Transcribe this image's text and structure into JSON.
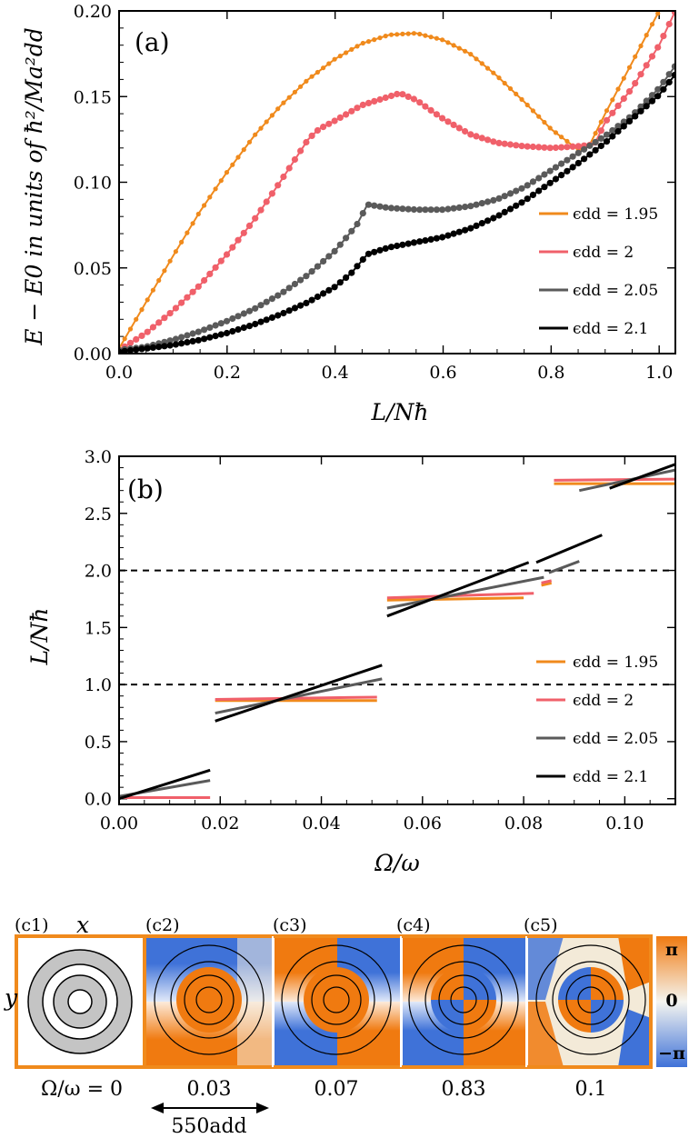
{
  "colors": {
    "eps_1_95": "#f08a1c",
    "eps_2": "#f0606a",
    "eps_2_05": "#5a5a5a",
    "eps_2_1": "#000000",
    "phase_pos": "#f07a10",
    "phase_neg": "#3f72d8",
    "frame": "#f08a1c"
  },
  "chart_data": [
    {
      "type": "line",
      "panel": "(a)",
      "xlabel": "L/Nħ",
      "ylabel": "E − E0 in units of ħ²/Ma²dd",
      "xlim": [
        0,
        1.03
      ],
      "ylim": [
        0,
        0.2
      ],
      "xticks": [
        "0.0",
        "0.2",
        "0.4",
        "0.6",
        "0.8",
        "1.0"
      ],
      "yticks": [
        "0.00",
        "0.05",
        "0.10",
        "0.15",
        "0.20"
      ],
      "legend_position": "right",
      "series": [
        {
          "name": "ϵdd = 1.95",
          "color_key": "eps_1_95",
          "points": [
            [
              0,
              0.003
            ],
            [
              0.05,
              0.03
            ],
            [
              0.1,
              0.057
            ],
            [
              0.15,
              0.083
            ],
            [
              0.2,
              0.106
            ],
            [
              0.25,
              0.127
            ],
            [
              0.3,
              0.145
            ],
            [
              0.35,
              0.16
            ],
            [
              0.4,
              0.172
            ],
            [
              0.45,
              0.181
            ],
            [
              0.5,
              0.186
            ],
            [
              0.55,
              0.187
            ],
            [
              0.6,
              0.183
            ],
            [
              0.65,
              0.175
            ],
            [
              0.7,
              0.162
            ],
            [
              0.75,
              0.147
            ],
            [
              0.8,
              0.131
            ],
            [
              0.85,
              0.119
            ],
            [
              0.87,
              0.121
            ],
            [
              0.9,
              0.14
            ],
            [
              0.95,
              0.17
            ],
            [
              1.0,
              0.2
            ],
            [
              1.03,
              0.22
            ]
          ]
        },
        {
          "name": "ϵdd = 2",
          "color_key": "eps_2",
          "points": [
            [
              0,
              0.002
            ],
            [
              0.05,
              0.012
            ],
            [
              0.1,
              0.025
            ],
            [
              0.15,
              0.04
            ],
            [
              0.2,
              0.058
            ],
            [
              0.25,
              0.078
            ],
            [
              0.3,
              0.101
            ],
            [
              0.35,
              0.125
            ],
            [
              0.37,
              0.131
            ],
            [
              0.4,
              0.136
            ],
            [
              0.45,
              0.145
            ],
            [
              0.5,
              0.15
            ],
            [
              0.52,
              0.152
            ],
            [
              0.55,
              0.148
            ],
            [
              0.6,
              0.137
            ],
            [
              0.65,
              0.128
            ],
            [
              0.7,
              0.123
            ],
            [
              0.75,
              0.121
            ],
            [
              0.8,
              0.12
            ],
            [
              0.85,
              0.121
            ],
            [
              0.88,
              0.122
            ],
            [
              0.9,
              0.135
            ],
            [
              0.95,
              0.155
            ],
            [
              1.0,
              0.18
            ],
            [
              1.03,
              0.2
            ]
          ]
        },
        {
          "name": "ϵdd = 2.05",
          "color_key": "eps_2_05",
          "points": [
            [
              0,
              0.002
            ],
            [
              0.05,
              0.004
            ],
            [
              0.1,
              0.008
            ],
            [
              0.15,
              0.013
            ],
            [
              0.2,
              0.019
            ],
            [
              0.25,
              0.026
            ],
            [
              0.3,
              0.035
            ],
            [
              0.35,
              0.046
            ],
            [
              0.4,
              0.06
            ],
            [
              0.44,
              0.075
            ],
            [
              0.46,
              0.087
            ],
            [
              0.5,
              0.085
            ],
            [
              0.55,
              0.084
            ],
            [
              0.6,
              0.084
            ],
            [
              0.65,
              0.086
            ],
            [
              0.7,
              0.09
            ],
            [
              0.75,
              0.097
            ],
            [
              0.8,
              0.107
            ],
            [
              0.85,
              0.117
            ],
            [
              0.9,
              0.127
            ],
            [
              0.95,
              0.139
            ],
            [
              1.0,
              0.155
            ],
            [
              1.03,
              0.168
            ]
          ]
        },
        {
          "name": "ϵdd = 2.1",
          "color_key": "eps_2_1",
          "points": [
            [
              0,
              0.001
            ],
            [
              0.05,
              0.003
            ],
            [
              0.1,
              0.005
            ],
            [
              0.15,
              0.008
            ],
            [
              0.2,
              0.012
            ],
            [
              0.25,
              0.017
            ],
            [
              0.3,
              0.023
            ],
            [
              0.35,
              0.03
            ],
            [
              0.4,
              0.039
            ],
            [
              0.43,
              0.047
            ],
            [
              0.46,
              0.058
            ],
            [
              0.5,
              0.062
            ],
            [
              0.55,
              0.065
            ],
            [
              0.6,
              0.068
            ],
            [
              0.65,
              0.073
            ],
            [
              0.7,
              0.08
            ],
            [
              0.75,
              0.089
            ],
            [
              0.8,
              0.1
            ],
            [
              0.85,
              0.111
            ],
            [
              0.9,
              0.123
            ],
            [
              0.95,
              0.137
            ],
            [
              1.0,
              0.151
            ],
            [
              1.03,
              0.163
            ]
          ]
        }
      ]
    },
    {
      "type": "line",
      "panel": "(b)",
      "xlabel": "Ω/ω",
      "ylabel": "L/Nħ",
      "xlim": [
        0,
        0.11
      ],
      "ylim": [
        -0.05,
        3
      ],
      "xticks": [
        "0.00",
        "0.02",
        "0.04",
        "0.06",
        "0.08",
        "0.10"
      ],
      "yticks": [
        "0.0",
        "0.5",
        "1.0",
        "1.5",
        "2.0",
        "2.5",
        "3.0"
      ],
      "hlines": [
        1.0,
        2.0
      ],
      "legend_position": "right",
      "series": [
        {
          "name": "ϵdd = 1.95",
          "color_key": "eps_1_95",
          "segments": [
            [
              [
                0.019,
                0.86
              ],
              [
                0.051,
                0.86
              ]
            ],
            [
              [
                0.053,
                1.74
              ],
              [
                0.08,
                1.76
              ]
            ],
            [
              [
                0.0835,
                1.87
              ],
              [
                0.0855,
                1.89
              ]
            ],
            [
              [
                0.086,
                2.76
              ],
              [
                0.11,
                2.76
              ]
            ]
          ]
        },
        {
          "name": "ϵdd = 2",
          "color_key": "eps_2",
          "segments": [
            [
              [
                0,
                0.01
              ],
              [
                0.018,
                0.01
              ]
            ],
            [
              [
                0.019,
                0.87
              ],
              [
                0.051,
                0.89
              ]
            ],
            [
              [
                0.053,
                1.76
              ],
              [
                0.082,
                1.8
              ]
            ],
            [
              [
                0.0835,
                1.89
              ],
              [
                0.0855,
                1.91
              ]
            ],
            [
              [
                0.086,
                2.79
              ],
              [
                0.11,
                2.8
              ]
            ]
          ]
        },
        {
          "name": "ϵdd = 2.05",
          "color_key": "eps_2_05",
          "segments": [
            [
              [
                0,
                0.02
              ],
              [
                0.018,
                0.16
              ]
            ],
            [
              [
                0.019,
                0.75
              ],
              [
                0.052,
                1.05
              ]
            ],
            [
              [
                0.053,
                1.67
              ],
              [
                0.084,
                1.94
              ]
            ],
            [
              [
                0.085,
                1.98
              ],
              [
                0.091,
                2.08
              ]
            ],
            [
              [
                0.091,
                2.7
              ],
              [
                0.11,
                2.88
              ]
            ]
          ]
        },
        {
          "name": "ϵdd = 2.1",
          "color_key": "eps_2_1",
          "segments": [
            [
              [
                0,
                0.0
              ],
              [
                0.018,
                0.25
              ]
            ],
            [
              [
                0.019,
                0.68
              ],
              [
                0.052,
                1.17
              ]
            ],
            [
              [
                0.053,
                1.6
              ],
              [
                0.081,
                2.07
              ]
            ],
            [
              [
                0.0825,
                2.07
              ],
              [
                0.0955,
                2.31
              ]
            ],
            [
              [
                0.097,
                2.72
              ],
              [
                0.11,
                2.93
              ]
            ]
          ]
        }
      ]
    }
  ],
  "panel_c": {
    "labels": [
      "(c1)",
      "(c2)",
      "(c3)",
      "(c4)",
      "(c5)"
    ],
    "x_axis": "x",
    "y_axis": "y",
    "omega_values": [
      "Ω/ω = 0",
      "0.03",
      "0.07",
      "0.83",
      "0.1"
    ],
    "scale_bar": "550add",
    "colorbar": {
      "top": "π",
      "mid": "0",
      "bottom": "−π"
    }
  }
}
